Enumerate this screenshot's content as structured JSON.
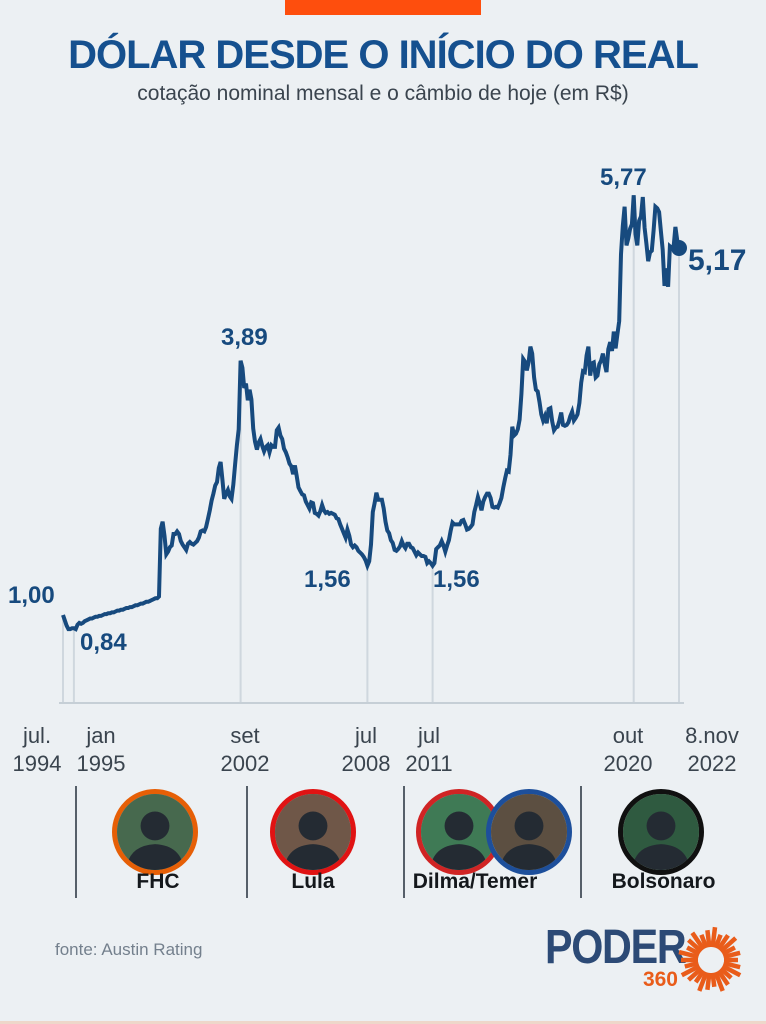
{
  "header": {
    "title": "DÓLAR DESDE O INÍCIO DO REAL",
    "subtitle": "cotação nominal mensal e o câmbio de hoje (em R$)"
  },
  "chart_data": {
    "type": "line",
    "title": "Dólar desde o início do Real",
    "xlabel": "",
    "ylabel": "",
    "unit": "R$ por US$",
    "x_start": "1994-07",
    "x_end": "2022-11-08",
    "x_frequency": "monthly",
    "ylim": [
      0,
      6.3
    ],
    "grid": "vertical-event-lines",
    "legend": "none",
    "values": [
      1.0,
      0.94,
      0.88,
      0.84,
      0.84,
      0.85,
      0.85,
      0.84,
      0.89,
      0.91,
      0.9,
      0.91,
      0.93,
      0.94,
      0.95,
      0.96,
      0.96,
      0.97,
      0.98,
      0.98,
      0.99,
      0.99,
      1.0,
      1.01,
      1.01,
      1.02,
      1.02,
      1.03,
      1.03,
      1.04,
      1.05,
      1.05,
      1.06,
      1.06,
      1.07,
      1.08,
      1.08,
      1.09,
      1.09,
      1.1,
      1.11,
      1.11,
      1.12,
      1.13,
      1.13,
      1.14,
      1.15,
      1.15,
      1.16,
      1.17,
      1.18,
      1.19,
      1.19,
      1.21,
      1.98,
      2.06,
      1.9,
      1.69,
      1.72,
      1.77,
      1.79,
      1.92,
      1.92,
      1.95,
      1.92,
      1.84,
      1.8,
      1.77,
      1.74,
      1.81,
      1.83,
      1.81,
      1.8,
      1.82,
      1.84,
      1.88,
      1.95,
      1.96,
      1.95,
      2.0,
      2.09,
      2.19,
      2.3,
      2.38,
      2.47,
      2.51,
      2.67,
      2.74,
      2.54,
      2.32,
      2.38,
      2.42,
      2.35,
      2.32,
      2.48,
      2.71,
      2.93,
      3.11,
      3.89,
      3.81,
      3.58,
      3.63,
      3.44,
      3.56,
      3.45,
      3.12,
      2.97,
      2.88,
      2.96,
      3.0,
      2.92,
      2.86,
      2.91,
      2.93,
      2.85,
      2.93,
      2.91,
      2.91,
      3.1,
      3.13,
      3.04,
      3.0,
      2.89,
      2.85,
      2.79,
      2.72,
      2.69,
      2.6,
      2.7,
      2.58,
      2.45,
      2.41,
      2.37,
      2.36,
      2.29,
      2.25,
      2.21,
      2.28,
      2.27,
      2.16,
      2.15,
      2.13,
      2.18,
      2.25,
      2.19,
      2.16,
      2.17,
      2.15,
      2.16,
      2.15,
      2.14,
      2.1,
      2.09,
      2.03,
      1.98,
      1.93,
      1.88,
      1.97,
      1.9,
      1.8,
      1.77,
      1.79,
      1.77,
      1.73,
      1.71,
      1.69,
      1.66,
      1.62,
      1.56,
      1.61,
      1.8,
      2.17,
      2.27,
      2.39,
      2.31,
      2.31,
      2.31,
      2.21,
      2.06,
      1.96,
      1.93,
      1.85,
      1.82,
      1.74,
      1.73,
      1.75,
      1.78,
      1.84,
      1.79,
      1.76,
      1.81,
      1.81,
      1.77,
      1.76,
      1.72,
      1.68,
      1.71,
      1.69,
      1.67,
      1.67,
      1.66,
      1.59,
      1.61,
      1.59,
      1.56,
      1.59,
      1.75,
      1.77,
      1.79,
      1.84,
      1.79,
      1.72,
      1.79,
      1.85,
      1.96,
      2.05,
      2.03,
      2.03,
      2.03,
      2.03,
      2.07,
      2.08,
      2.03,
      1.97,
      1.98,
      2.0,
      2.03,
      2.17,
      2.25,
      2.34,
      2.27,
      2.19,
      2.29,
      2.34,
      2.38,
      2.38,
      2.33,
      2.23,
      2.22,
      2.23,
      2.22,
      2.27,
      2.33,
      2.45,
      2.55,
      2.64,
      2.63,
      2.82,
      3.14,
      3.04,
      3.06,
      3.11,
      3.22,
      3.51,
      3.91,
      3.88,
      3.78,
      3.87,
      4.05,
      3.97,
      3.7,
      3.56,
      3.54,
      3.42,
      3.28,
      3.21,
      3.26,
      3.18,
      3.34,
      3.35,
      3.2,
      3.1,
      3.13,
      3.14,
      3.21,
      3.3,
      3.16,
      3.15,
      3.16,
      3.19,
      3.26,
      3.31,
      3.21,
      3.24,
      3.28,
      3.41,
      3.64,
      3.77,
      3.76,
      3.95,
      4.05,
      3.72,
      3.86,
      3.87,
      3.7,
      3.72,
      3.85,
      3.89,
      3.97,
      3.85,
      3.76,
      4.02,
      4.1,
      4.0,
      4.22,
      4.03,
      4.19,
      4.34,
      5.1,
      5.42,
      5.64,
      5.2,
      5.28,
      5.39,
      5.44,
      5.77,
      5.33,
      5.2,
      5.48,
      5.53,
      5.75,
      5.4,
      5.22,
      5.02,
      5.12,
      5.14,
      5.37,
      5.64,
      5.62,
      5.58,
      5.36,
      5.15,
      4.74,
      4.94,
      4.73,
      5.19,
      5.17,
      5.18,
      5.41,
      5.26,
      5.17
    ],
    "annotations": [
      {
        "label": "1,00",
        "month": 0,
        "value": 1.0
      },
      {
        "label": "0,84",
        "month": 4,
        "value": 0.84
      },
      {
        "label": "3,89",
        "month": 98,
        "value": 3.89
      },
      {
        "label": "1,56",
        "month": 168,
        "value": 1.56
      },
      {
        "label": "1,56",
        "month": 204,
        "value": 1.56
      },
      {
        "label": "5,77",
        "month": 315,
        "value": 5.77
      },
      {
        "label": "5,17",
        "month": 340,
        "value": 5.17
      }
    ],
    "x_ticks": [
      {
        "line1": "jul.",
        "line2": "1994",
        "month": 0
      },
      {
        "line1": "jan",
        "line2": "1995",
        "month": 6
      },
      {
        "line1": "set",
        "line2": "2002",
        "month": 98
      },
      {
        "line1": "jul",
        "line2": "2008",
        "month": 168
      },
      {
        "line1": "jul",
        "line2": "2011",
        "month": 204
      },
      {
        "line1": "out",
        "line2": "2020",
        "month": 315
      },
      {
        "line1": "8.nov",
        "line2": "2022",
        "month": 340
      }
    ]
  },
  "presidents": [
    {
      "name": "FHC",
      "border_color": "#e65f06",
      "bg_color": "#47694e"
    },
    {
      "name": "Lula",
      "border_color": "#e01313",
      "bg_color": "#6f5748"
    },
    {
      "name": "Dilma/Temer",
      "border_color": "#d02424",
      "border_color2": "#1d4f9b",
      "bg_color": "#3f7a55",
      "bg_color2": "#5c4f41"
    },
    {
      "name": "Bolsonaro",
      "border_color": "#101010",
      "bg_color": "#2f5a40"
    }
  ],
  "footer": {
    "source": "fonte: Austin Rating",
    "logo_text": "PODER",
    "logo_sub": "360"
  },
  "colors": {
    "background": "#ecf0f3",
    "accent_orange": "#fe4e0d",
    "line_navy": "#174a7e",
    "title_blue": "#15508f",
    "grid_gray": "#cfd7de",
    "axis_gray": "#c6cfd6",
    "tick_text": "#3a444e",
    "source_gray": "#74808d",
    "logo_blue": "#2c4a76",
    "logo_orange": "#e95c1a"
  }
}
